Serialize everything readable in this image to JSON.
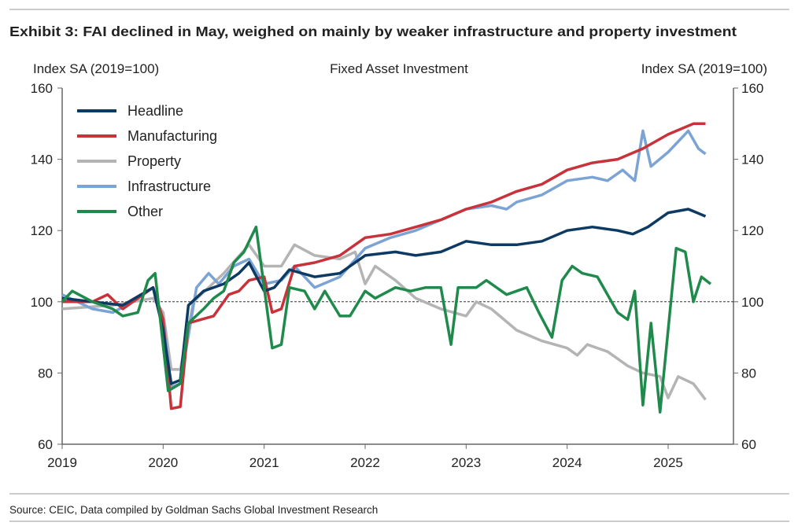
{
  "title": "Exhibit 3: FAI declined in May, weighed on mainly by weaker infrastructure and property investment",
  "source": "Source: CEIC, Data compiled by Goldman Sachs Global Investment Research",
  "chart_data": {
    "type": "line",
    "title": "Fixed Asset Investment",
    "ylabel_left": "Index SA (2019=100)",
    "ylabel_right": "Index SA (2019=100)",
    "ylim": [
      60,
      160
    ],
    "yticks": [
      "60",
      "80",
      "100",
      "120",
      "140",
      "160"
    ],
    "xlim": [
      2019,
      2025.6
    ],
    "xticks": [
      "2019",
      "2020",
      "2021",
      "2022",
      "2023",
      "2024",
      "2025"
    ],
    "reference_line": 100,
    "legend_position": "top-left",
    "series": [
      {
        "name": "Headline",
        "color": "#0d3a63",
        "points": [
          [
            2019,
            101
          ],
          [
            2019.3,
            100
          ],
          [
            2019.6,
            99
          ],
          [
            2019.9,
            104
          ],
          [
            2020.0,
            92
          ],
          [
            2020.08,
            77
          ],
          [
            2020.17,
            78
          ],
          [
            2020.25,
            99
          ],
          [
            2020.4,
            103
          ],
          [
            2020.6,
            105
          ],
          [
            2020.75,
            108
          ],
          [
            2020.85,
            111
          ],
          [
            2021.0,
            103
          ],
          [
            2021.1,
            104
          ],
          [
            2021.25,
            109
          ],
          [
            2021.5,
            107
          ],
          [
            2021.75,
            108
          ],
          [
            2022.0,
            113
          ],
          [
            2022.3,
            114
          ],
          [
            2022.5,
            113
          ],
          [
            2022.75,
            114
          ],
          [
            2023.0,
            117
          ],
          [
            2023.25,
            116
          ],
          [
            2023.5,
            116
          ],
          [
            2023.75,
            117
          ],
          [
            2024.0,
            120
          ],
          [
            2024.25,
            121
          ],
          [
            2024.5,
            120
          ],
          [
            2024.65,
            119
          ],
          [
            2024.8,
            121
          ],
          [
            2025.0,
            125
          ],
          [
            2025.2,
            126
          ],
          [
            2025.37,
            124
          ]
        ]
      },
      {
        "name": "Manufacturing",
        "color": "#c8323a",
        "points": [
          [
            2019,
            100
          ],
          [
            2019.3,
            100
          ],
          [
            2019.45,
            102
          ],
          [
            2019.6,
            98
          ],
          [
            2019.75,
            101
          ],
          [
            2019.9,
            104
          ],
          [
            2020.0,
            95
          ],
          [
            2020.08,
            70
          ],
          [
            2020.17,
            70.5
          ],
          [
            2020.25,
            94
          ],
          [
            2020.5,
            96
          ],
          [
            2020.65,
            102
          ],
          [
            2020.75,
            103
          ],
          [
            2020.85,
            106
          ],
          [
            2021.0,
            107
          ],
          [
            2021.08,
            97
          ],
          [
            2021.17,
            98
          ],
          [
            2021.3,
            110
          ],
          [
            2021.5,
            111
          ],
          [
            2021.75,
            113
          ],
          [
            2022.0,
            118
          ],
          [
            2022.25,
            119
          ],
          [
            2022.5,
            121
          ],
          [
            2022.75,
            123
          ],
          [
            2023.0,
            126
          ],
          [
            2023.25,
            128
          ],
          [
            2023.5,
            131
          ],
          [
            2023.75,
            133
          ],
          [
            2024.0,
            137
          ],
          [
            2024.25,
            139
          ],
          [
            2024.5,
            140
          ],
          [
            2024.75,
            143
          ],
          [
            2025.0,
            147
          ],
          [
            2025.25,
            150
          ],
          [
            2025.37,
            150
          ]
        ]
      },
      {
        "name": "Property",
        "color": "#b4b4b4",
        "points": [
          [
            2019,
            98
          ],
          [
            2019.5,
            99
          ],
          [
            2019.9,
            101
          ],
          [
            2020.0,
            97
          ],
          [
            2020.08,
            81
          ],
          [
            2020.17,
            81
          ],
          [
            2020.3,
            100
          ],
          [
            2020.6,
            108
          ],
          [
            2020.85,
            116
          ],
          [
            2021.0,
            110
          ],
          [
            2021.17,
            110
          ],
          [
            2021.3,
            116
          ],
          [
            2021.5,
            113
          ],
          [
            2021.75,
            112
          ],
          [
            2021.9,
            114
          ],
          [
            2022.0,
            105
          ],
          [
            2022.1,
            110
          ],
          [
            2022.3,
            106
          ],
          [
            2022.5,
            101
          ],
          [
            2022.75,
            98
          ],
          [
            2023.0,
            96
          ],
          [
            2023.1,
            100
          ],
          [
            2023.25,
            98
          ],
          [
            2023.5,
            92
          ],
          [
            2023.75,
            89
          ],
          [
            2024.0,
            87
          ],
          [
            2024.1,
            85
          ],
          [
            2024.2,
            88
          ],
          [
            2024.4,
            86
          ],
          [
            2024.6,
            82
          ],
          [
            2024.75,
            80
          ],
          [
            2024.92,
            79
          ],
          [
            2025.0,
            73
          ],
          [
            2025.1,
            79
          ],
          [
            2025.25,
            77
          ],
          [
            2025.37,
            72.5
          ]
        ]
      },
      {
        "name": "Infrastructure",
        "color": "#7ba3d4",
        "points": [
          [
            2019,
            102
          ],
          [
            2019.3,
            98
          ],
          [
            2019.5,
            97
          ],
          [
            2019.7,
            100
          ],
          [
            2019.9,
            104
          ],
          [
            2020.0,
            95
          ],
          [
            2020.08,
            76
          ],
          [
            2020.17,
            77
          ],
          [
            2020.33,
            104
          ],
          [
            2020.45,
            108
          ],
          [
            2020.55,
            105
          ],
          [
            2020.7,
            110
          ],
          [
            2020.85,
            112
          ],
          [
            2021.0,
            105
          ],
          [
            2021.17,
            106
          ],
          [
            2021.3,
            110
          ],
          [
            2021.5,
            104
          ],
          [
            2021.75,
            107
          ],
          [
            2022.0,
            115
          ],
          [
            2022.25,
            118
          ],
          [
            2022.5,
            120
          ],
          [
            2022.75,
            123
          ],
          [
            2023.0,
            126
          ],
          [
            2023.25,
            127
          ],
          [
            2023.4,
            126
          ],
          [
            2023.5,
            128
          ],
          [
            2023.75,
            130
          ],
          [
            2024.0,
            134
          ],
          [
            2024.25,
            135
          ],
          [
            2024.4,
            134
          ],
          [
            2024.55,
            137
          ],
          [
            2024.67,
            134
          ],
          [
            2024.75,
            148
          ],
          [
            2024.83,
            138
          ],
          [
            2025.0,
            142
          ],
          [
            2025.2,
            148
          ],
          [
            2025.3,
            143
          ],
          [
            2025.37,
            141.5
          ]
        ]
      },
      {
        "name": "Other",
        "color": "#1f8a4c",
        "points": [
          [
            2019,
            100
          ],
          [
            2019.1,
            103
          ],
          [
            2019.3,
            100
          ],
          [
            2019.5,
            98
          ],
          [
            2019.6,
            96
          ],
          [
            2019.75,
            97
          ],
          [
            2019.85,
            106
          ],
          [
            2019.92,
            108
          ],
          [
            2020.05,
            75
          ],
          [
            2020.17,
            77
          ],
          [
            2020.25,
            94
          ],
          [
            2020.4,
            98
          ],
          [
            2020.5,
            101
          ],
          [
            2020.6,
            103
          ],
          [
            2020.7,
            111
          ],
          [
            2020.8,
            114
          ],
          [
            2020.92,
            121
          ],
          [
            2021.08,
            87
          ],
          [
            2021.17,
            88
          ],
          [
            2021.25,
            104
          ],
          [
            2021.4,
            103
          ],
          [
            2021.5,
            98
          ],
          [
            2021.6,
            103
          ],
          [
            2021.75,
            96
          ],
          [
            2021.85,
            96
          ],
          [
            2022.0,
            103
          ],
          [
            2022.1,
            101
          ],
          [
            2022.3,
            104
          ],
          [
            2022.45,
            103
          ],
          [
            2022.6,
            104
          ],
          [
            2022.75,
            104
          ],
          [
            2022.85,
            88
          ],
          [
            2022.92,
            104
          ],
          [
            2023.1,
            104
          ],
          [
            2023.2,
            106
          ],
          [
            2023.4,
            102
          ],
          [
            2023.6,
            104
          ],
          [
            2023.72,
            97
          ],
          [
            2023.85,
            90
          ],
          [
            2023.95,
            106
          ],
          [
            2024.05,
            110
          ],
          [
            2024.15,
            108
          ],
          [
            2024.3,
            107
          ],
          [
            2024.5,
            97
          ],
          [
            2024.6,
            95
          ],
          [
            2024.67,
            103
          ],
          [
            2024.75,
            71
          ],
          [
            2024.83,
            94
          ],
          [
            2024.92,
            69
          ],
          [
            2025.08,
            115
          ],
          [
            2025.17,
            114
          ],
          [
            2025.25,
            100
          ],
          [
            2025.33,
            107
          ],
          [
            2025.42,
            105
          ]
        ]
      }
    ]
  }
}
